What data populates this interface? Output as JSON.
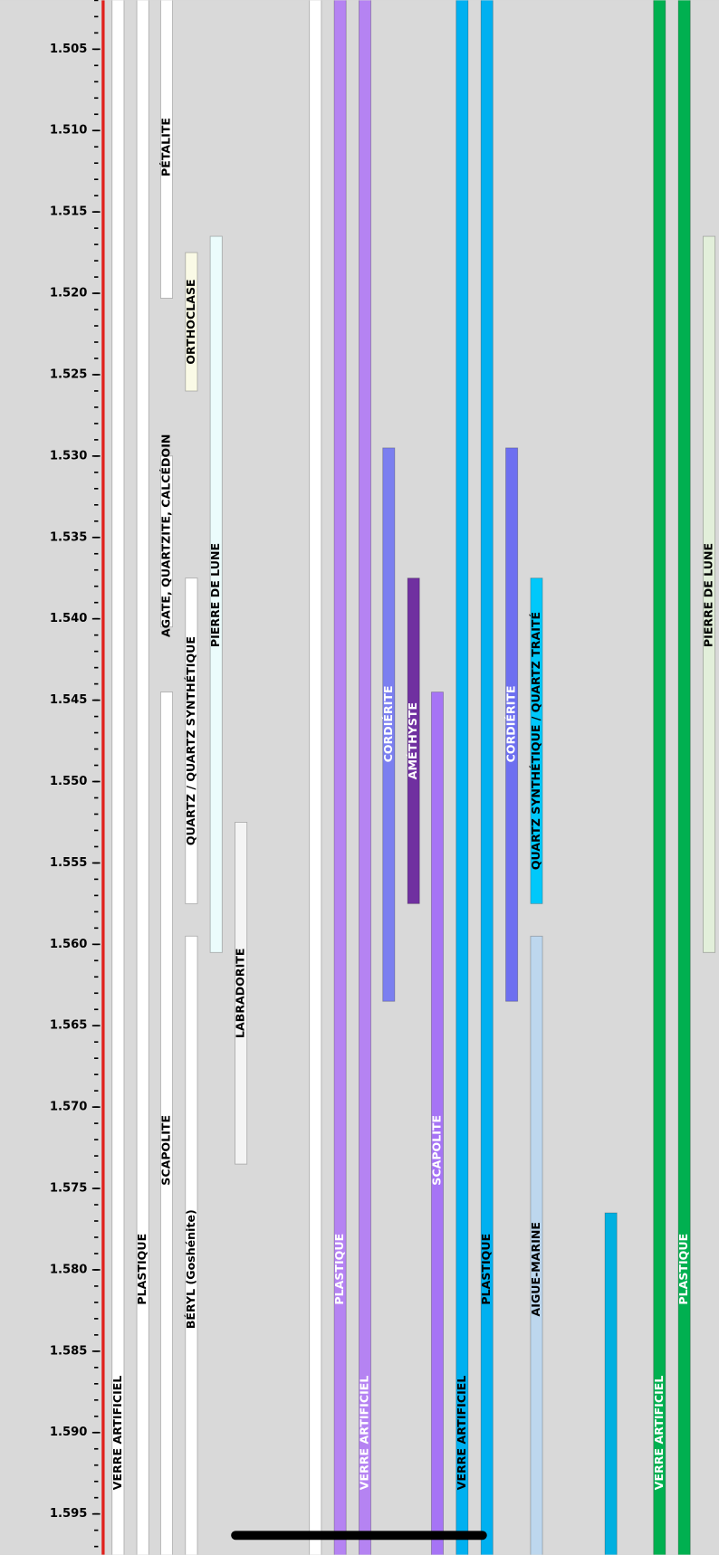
{
  "chart_data": {
    "type": "range",
    "ylim": [
      1.502,
      1.5975
    ],
    "yticks": [
      {
        "value": 1.505,
        "label": "1.505"
      },
      {
        "value": 1.51,
        "label": "1.510"
      },
      {
        "value": 1.515,
        "label": "1.515"
      },
      {
        "value": 1.52,
        "label": "1.520"
      },
      {
        "value": 1.525,
        "label": "1.525"
      },
      {
        "value": 1.53,
        "label": "1.530"
      },
      {
        "value": 1.535,
        "label": "1.535"
      },
      {
        "value": 1.54,
        "label": "1.540"
      },
      {
        "value": 1.545,
        "label": "1.545"
      },
      {
        "value": 1.55,
        "label": "1.550"
      },
      {
        "value": 1.555,
        "label": "1.555"
      },
      {
        "value": 1.56,
        "label": "1.560"
      },
      {
        "value": 1.565,
        "label": "1.565"
      },
      {
        "value": 1.57,
        "label": "1.570"
      },
      {
        "value": 1.575,
        "label": "1.575"
      },
      {
        "value": 1.58,
        "label": "1.580"
      },
      {
        "value": 1.585,
        "label": "1.585"
      },
      {
        "value": 1.59,
        "label": "1.590"
      },
      {
        "value": 1.595,
        "label": "1.595"
      }
    ],
    "minor_yticks": [
      1.502,
      1.503,
      1.504,
      1.505,
      1.506,
      1.507,
      1.508,
      1.509,
      1.51,
      1.511,
      1.512,
      1.513,
      1.514,
      1.515,
      1.516,
      1.517,
      1.518,
      1.519,
      1.52,
      1.521,
      1.522,
      1.523,
      1.524,
      1.525,
      1.526,
      1.527,
      1.528,
      1.529,
      1.53,
      1.531,
      1.532,
      1.533,
      1.534,
      1.535,
      1.536,
      1.537,
      1.538,
      1.539,
      1.54,
      1.541,
      1.542,
      1.543,
      1.544,
      1.545,
      1.546,
      1.547,
      1.548,
      1.549,
      1.55,
      1.551,
      1.552,
      1.553,
      1.554,
      1.555,
      1.556,
      1.557,
      1.558,
      1.559,
      1.56,
      1.561,
      1.562,
      1.563,
      1.564,
      1.565,
      1.566,
      1.567,
      1.568,
      1.569,
      1.57,
      1.571,
      1.572,
      1.573,
      1.574,
      1.575,
      1.576,
      1.577,
      1.578,
      1.579,
      1.58,
      1.581,
      1.582,
      1.583,
      1.584,
      1.585,
      1.586,
      1.587,
      1.588,
      1.589,
      1.59,
      1.591,
      1.592,
      1.593,
      1.594,
      1.595,
      1.596,
      1.597
    ],
    "bars": [
      {
        "label": "VERRE ARTIFICIEL",
        "color": "#ffffff",
        "label_color": "#000000",
        "range": [
          1.5,
          1.6
        ]
      },
      {
        "label": "PLASTIQUE",
        "color": "#ffffff",
        "label_color": "#000000",
        "range": [
          1.5,
          1.6
        ]
      },
      {
        "label": "PÉTALITE",
        "color": "#ffffff",
        "label_color": "#000000",
        "range": [
          1.5,
          1.5203
        ]
      },
      {
        "label": "AGATE, QUARTZITE, CALCÉDOIN",
        "color": "#ffffff",
        "label_color": "#000000",
        "range": [
          1.53,
          1.5405
        ]
      },
      {
        "label": "SCAPOLITE",
        "color": "#ffffff",
        "label_color": "#000000",
        "range": [
          1.5445,
          1.6
        ]
      },
      {
        "label": "ORTHOCLASE",
        "color": "#fafae6",
        "label_color": "#000000",
        "range": [
          1.5175,
          1.526
        ]
      },
      {
        "label": "QUARTZ / QUARTZ SYNTHÉTIQUE",
        "color": "#ffffff",
        "label_color": "#000000",
        "range": [
          1.5375,
          1.5575
        ]
      },
      {
        "label": "BÉRYL (Goshénite)",
        "color": "#ffffff",
        "label_color": "#000000",
        "range": [
          1.5595,
          1.6
        ]
      },
      {
        "label": "PIERRE DE LUNE",
        "color": "#ebfcfc",
        "label_color": "#000000",
        "range": [
          1.5165,
          1.5605
        ]
      },
      {
        "label": "LABRADORITE",
        "color": "#f4f4f4",
        "label_color": "#000000",
        "range": [
          1.5525,
          1.5735
        ]
      },
      {
        "label": null,
        "color": "#ffffff",
        "label_color": "#000000",
        "range": [
          1.5,
          1.6
        ]
      },
      {
        "label": "PLASTIQUE",
        "color": "#b583f2",
        "label_color": "#ffffff",
        "range": [
          1.5,
          1.6
        ]
      },
      {
        "label": "VERRE ARTIFICIEL",
        "color": "#b583f2",
        "label_color": "#ffffff",
        "range": [
          1.5,
          1.6
        ]
      },
      {
        "label": "CORDIÉRITE",
        "color": "#7b7ff0",
        "label_color": "#ffffff",
        "range": [
          1.5295,
          1.5635
        ]
      },
      {
        "label": "AMÉTHYSTE",
        "color": "#7030a0",
        "label_color": "#ffffff",
        "range": [
          1.5375,
          1.5575
        ]
      },
      {
        "label": "SCAPOLITE",
        "color": "#a674f5",
        "label_color": "#ffffff",
        "range": [
          1.5445,
          1.6
        ]
      },
      {
        "label": "VERRE ARTIFICIEL",
        "color": "#00b0f0",
        "label_color": "#000000",
        "range": [
          1.5,
          1.6
        ]
      },
      {
        "label": "PLASTIQUE",
        "color": "#00b0f0",
        "label_color": "#000000",
        "range": [
          1.5,
          1.6
        ]
      },
      {
        "label": "CORDIÉRITE",
        "color": "#6d6ff0",
        "label_color": "#ffffff",
        "range": [
          1.5295,
          1.5635
        ]
      },
      {
        "label": "QUARTZ SYNTHÉTIQUE / QUARTZ TRAITÉ",
        "color": "#00c8fa",
        "label_color": "#000000",
        "range": [
          1.5375,
          1.5575
        ]
      },
      {
        "label": "AIGUE-MARINE",
        "color": "#bdd7ee",
        "label_color": "#000000",
        "range": [
          1.5595,
          1.6
        ]
      },
      {
        "label": null,
        "color": "#00b0e0",
        "label_color": "#000000",
        "range": [
          1.5765,
          1.6
        ]
      },
      {
        "label": "VERRE ARTIFICIEL",
        "color": "#00b050",
        "label_color": "#ffffff",
        "range": [
          1.5,
          1.6
        ]
      },
      {
        "label": "PLASTIQUE",
        "color": "#00b050",
        "label_color": "#ffffff",
        "range": [
          1.5,
          1.6
        ]
      },
      {
        "label": "PIERRE DE LUNE",
        "color": "#e2efda",
        "label_color": "#000000",
        "range": [
          1.5165,
          1.5605
        ]
      }
    ]
  }
}
